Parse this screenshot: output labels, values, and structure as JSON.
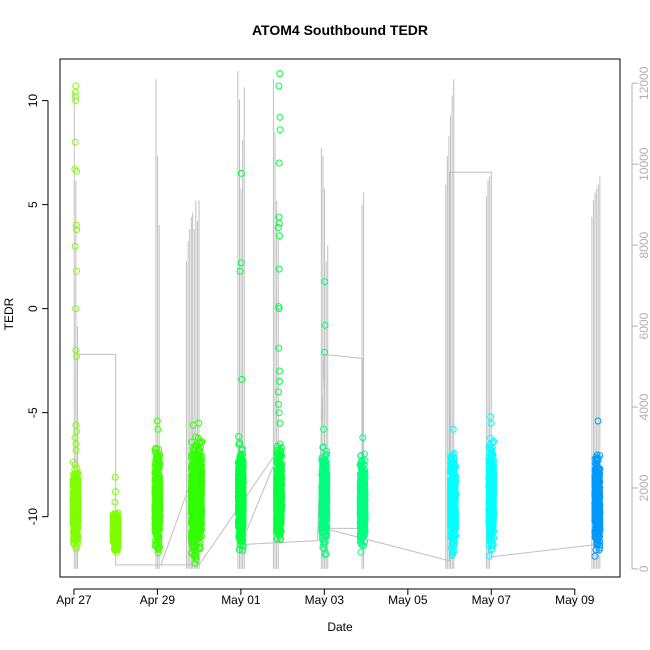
{
  "chart_data": {
    "type": "scatter",
    "title": "ATOM4 Southbound TEDR",
    "xlabel": "Date",
    "ylabel": "TEDR",
    "ylim": [
      -12.9,
      12.0
    ],
    "ylim_right": [
      -200,
      12600
    ],
    "x_axis": {
      "type": "date",
      "tick_labels": [
        "Apr 27",
        "Apr 29",
        "May 01",
        "May 03",
        "May 05",
        "May 07",
        "May 09"
      ],
      "tick_dates": [
        "2017-04-27",
        "2017-04-29",
        "2017-05-01",
        "2017-05-03",
        "2017-05-05",
        "2017-05-07",
        "2017-05-09"
      ],
      "range": [
        "2017-04-26T16:00",
        "2017-05-10T02:00"
      ]
    },
    "y_ticks": [
      -10,
      -5,
      0,
      5,
      10
    ],
    "y_ticks_right": [
      0,
      2000,
      4000,
      6000,
      8000,
      10000,
      12000
    ],
    "grid": false,
    "point_series": [
      {
        "date": "2017-04-27T01:00",
        "color": "#7fff00",
        "ymin": -11.8,
        "ymax": -7.2,
        "outliers": [
          -5.6,
          -5.9,
          -6.2,
          -6.5,
          -6.8,
          -2.0,
          -2.3,
          0.0,
          1.8,
          3.0,
          3.8,
          4.0,
          6.6,
          6.7,
          8.0,
          10.0,
          10.2,
          10.4,
          10.7
        ]
      },
      {
        "date": "2017-04-28T00:00",
        "color": "#7fff00",
        "ymin": -11.9,
        "ymax": -9.6,
        "outliers": [
          -8.1,
          -8.8,
          -9.3
        ]
      },
      {
        "date": "2017-04-29T00:00",
        "color": "#40ff00",
        "ymin": -12.2,
        "ymax": -6.2,
        "outliers": [
          -5.4,
          -5.8
        ]
      },
      {
        "date": "2017-04-29T21:00",
        "color": "#30ff00",
        "ymin": -12.6,
        "ymax": -5.9,
        "outliers": [
          -5.6
        ]
      },
      {
        "date": "2017-04-30T00:00",
        "color": "#30ff00",
        "ymin": -12.2,
        "ymax": -5.8,
        "outliers": [
          -5.5
        ]
      },
      {
        "date": "2017-05-01T00:00",
        "color": "#00ff40",
        "ymin": -12.2,
        "ymax": -5.8,
        "outliers": [
          -3.4,
          1.8,
          2.2,
          6.5
        ]
      },
      {
        "date": "2017-05-01T22:00",
        "color": "#00ff40",
        "ymin": -11.8,
        "ymax": -6.0,
        "outliers": [
          -5.5,
          -5.0,
          -4.6,
          -4.0,
          -3.5,
          -3.0,
          -1.9,
          0.0,
          0.1,
          1.9,
          3.5,
          3.9,
          4.1,
          4.4,
          7.0,
          8.6,
          9.2,
          10.7,
          11.3
        ]
      },
      {
        "date": "2017-05-03T00:00",
        "color": "#00ff80",
        "ymin": -12.0,
        "ymax": -6.3,
        "outliers": [
          -5.8,
          -2.1,
          -0.8,
          1.3
        ]
      },
      {
        "date": "2017-05-03T22:00",
        "color": "#00ff80",
        "ymin": -12.2,
        "ymax": -6.5,
        "outliers": [
          -6.2
        ]
      },
      {
        "date": "2017-05-06T02:00",
        "color": "#00ffff",
        "ymin": -12.3,
        "ymax": -6.2,
        "outliers": [
          -5.8
        ]
      },
      {
        "date": "2017-05-07T00:00",
        "color": "#00ffff",
        "ymin": -12.3,
        "ymax": -5.8,
        "outliers": [
          -5.2,
          -5.5
        ]
      },
      {
        "date": "2017-05-09T13:00",
        "color": "#0099ff",
        "ymin": -12.2,
        "ymax": -6.5,
        "outliers": [
          -5.4
        ]
      }
    ],
    "right_series": {
      "name": "",
      "color": "#c0c0c0",
      "spikes": [
        {
          "date": "2017-04-27T01:00",
          "heights": [
            11800,
            9600,
            6000
          ]
        },
        {
          "date": "2017-04-29T00:00",
          "heights": [
            12100,
            10200,
            8500
          ]
        },
        {
          "date": "2017-04-29T18:00",
          "heights": [
            7600,
            8100,
            8400,
            8700
          ]
        },
        {
          "date": "2017-04-29T22:00",
          "heights": [
            8800,
            8400,
            9100,
            8600,
            9100
          ]
        },
        {
          "date": "2017-05-01T00:00",
          "heights": [
            12300,
            11600,
            9400,
            10600,
            11900
          ]
        },
        {
          "date": "2017-05-01T20:00",
          "heights": [
            12100,
            10800,
            9100,
            8200
          ]
        },
        {
          "date": "2017-05-03T00:00",
          "heights": [
            10400,
            10200,
            9400,
            7600,
            8000
          ]
        },
        {
          "date": "2017-05-03T22:00",
          "heights": [
            9000,
            9300
          ]
        },
        {
          "date": "2017-05-06T00:00",
          "heights": [
            9500,
            10200,
            10700,
            11200,
            11700,
            12100
          ]
        },
        {
          "date": "2017-05-06T22:00",
          "heights": [
            9200,
            9600,
            9700
          ]
        },
        {
          "date": "2017-05-09T12:00",
          "heights": [
            8700,
            9100,
            9300,
            9400,
            9500,
            9700
          ]
        }
      ],
      "path": [
        [
          "2017-04-27T02:00",
          0
        ],
        [
          "2017-04-27T02:00",
          5300
        ],
        [
          "2017-04-28T00:00",
          5300
        ],
        [
          "2017-04-28T00:00",
          100
        ],
        [
          "2017-04-29T02:00",
          100
        ],
        [
          "2017-04-30T04:00",
          3200
        ],
        [
          "2017-04-29T02:00",
          100
        ],
        [
          "2017-04-30T00:00",
          100
        ],
        [
          "2017-05-02T00:00",
          3100
        ],
        [
          "2017-05-01T00:00",
          600
        ],
        [
          "2017-05-02T20:00",
          700
        ],
        [
          "2017-05-03T00:00",
          5300
        ],
        [
          "2017-05-03T22:00",
          5200
        ],
        [
          "2017-05-03T22:00",
          1000
        ],
        [
          "2017-05-03T00:00",
          1000
        ],
        [
          "2017-05-06T00:00",
          200
        ],
        [
          "2017-05-06T00:00",
          9800
        ],
        [
          "2017-05-07T00:00",
          9800
        ],
        [
          "2017-05-07T00:00",
          300
        ],
        [
          "2017-05-09T12:00",
          600
        ]
      ]
    }
  }
}
